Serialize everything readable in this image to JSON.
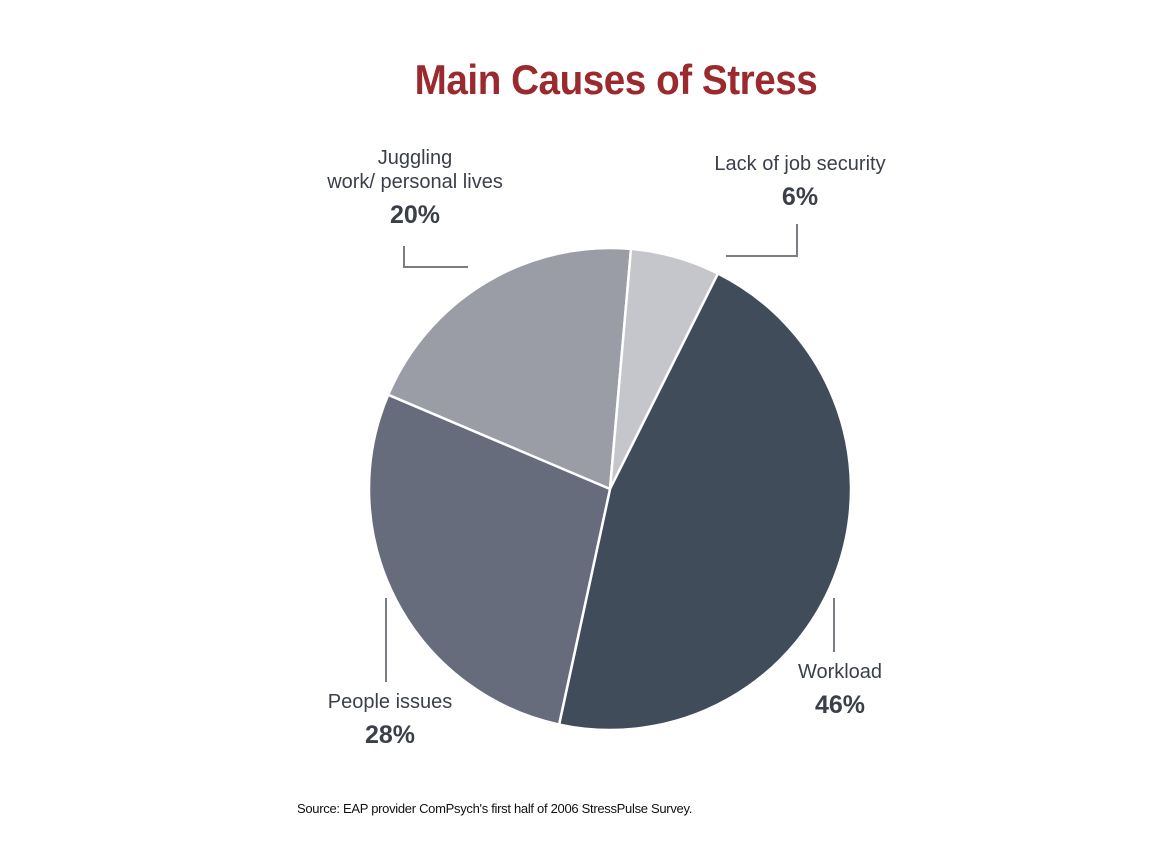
{
  "chart_data": {
    "type": "pie",
    "title": "Main Causes of Stress",
    "slices": [
      {
        "name_lines": [
          "Juggling",
          "work/ personal lives"
        ],
        "value": 20,
        "label": "20%",
        "color": "#9a9da6"
      },
      {
        "name_lines": [
          "Lack of job security"
        ],
        "value": 6,
        "label": "6%",
        "color": "#c5c6cb"
      },
      {
        "name_lines": [
          "Workload"
        ],
        "value": 46,
        "label": "46%",
        "color": "#414c5b"
      },
      {
        "name_lines": [
          "People issues"
        ],
        "value": 28,
        "label": "28%",
        "color": "#676c7d"
      }
    ],
    "source": "Source: EAP provider ComPsych's first half of 2006 StressPulse Survey."
  }
}
